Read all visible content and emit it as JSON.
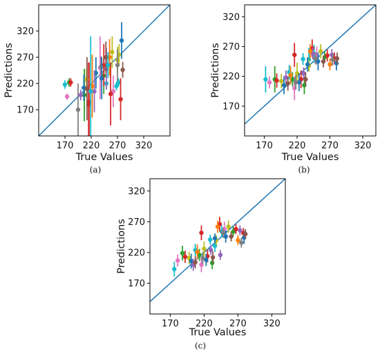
{
  "figure": {
    "captions": [
      "(a)",
      "(b)",
      "(c)"
    ]
  },
  "chart_data": [
    {
      "panel": "(a)",
      "type": "scatter",
      "xlabel": "True Values",
      "ylabel": "Predictions",
      "xlim": [
        120,
        370
      ],
      "ylim": [
        120,
        370
      ],
      "xticks": [
        170,
        220,
        270,
        320
      ],
      "yticks": [
        170,
        220,
        270,
        320
      ],
      "diagonal": "y = x",
      "grid": false,
      "series": [
        {
          "color": "#17becf",
          "values": [
            [
              170,
              218,
              8,
              8
            ],
            [
              249,
              220,
              6,
              6
            ],
            [
              268,
              215,
              8,
              8
            ],
            [
              272,
              222,
              8,
              8
            ]
          ]
        },
        {
          "color": "#e377c2",
          "values": [
            [
              174,
              195,
              6,
              6
            ],
            [
              237,
              250,
              60,
              60
            ],
            [
              262,
              205,
              30,
              30
            ]
          ]
        },
        {
          "color": "#2ca02c",
          "values": [
            [
              178,
              222,
              8,
              8
            ],
            [
              244,
              235,
              35,
              35
            ],
            [
              207,
              198,
              50,
              50
            ]
          ]
        },
        {
          "color": "#d62728",
          "values": [
            [
              181,
              222,
              8,
              8
            ],
            [
              215,
              180,
              80,
              80
            ],
            [
              216,
              185,
              75,
              75
            ],
            [
              244,
              255,
              40,
              40
            ],
            [
              257,
              200,
              60,
              60
            ],
            [
              276,
              190,
              40,
              40
            ]
          ]
        },
        {
          "color": "#bcbd22",
          "values": [
            [
              211,
              228,
              20,
              20
            ],
            [
              260,
              280,
              30,
              30
            ],
            [
              270,
              265,
              25,
              25
            ],
            [
              273,
              275,
              20,
              20
            ]
          ]
        },
        {
          "color": "#7f7f7f",
          "values": [
            [
              195,
              170,
              50,
              50
            ],
            [
              239,
              252,
              20,
              20
            ],
            [
              270,
              255,
              30,
              30
            ]
          ]
        },
        {
          "color": "#1f77b4",
          "values": [
            [
              206,
              212,
              25,
              25
            ],
            [
              229,
              240,
              30,
              30
            ],
            [
              240,
              230,
              40,
              40
            ],
            [
              278,
              302,
              35,
              35
            ]
          ]
        },
        {
          "color": "#9467bd",
          "values": [
            [
              200,
              198,
              10,
              10
            ],
            [
              226,
              205,
              40,
              40
            ],
            [
              249,
              248,
              40,
              40
            ]
          ]
        },
        {
          "color": "#8c564b",
          "values": [
            [
              212,
              210,
              60,
              60
            ],
            [
              248,
              270,
              30,
              30
            ],
            [
              280,
              246,
              15,
              15
            ]
          ]
        },
        {
          "color": "#ff7f0e",
          "values": [
            [
              222,
              215,
              60,
              60
            ],
            [
              255,
              270,
              35,
              35
            ]
          ]
        },
        {
          "color": "#17becf",
          "values": [
            [
              219,
              205,
              105,
              105
            ],
            [
              252,
              255,
              25,
              25
            ]
          ]
        }
      ]
    },
    {
      "panel": "(b)",
      "type": "scatter",
      "xlabel": "True Values",
      "ylabel": "Predictions",
      "xlim": [
        140,
        340
      ],
      "ylim": [
        120,
        340
      ],
      "xticks": [
        170,
        220,
        270,
        320
      ],
      "yticks": [
        170,
        220,
        270,
        320
      ],
      "diagonal": "y = x",
      "grid": false,
      "series": [
        {
          "color": "#17becf",
          "values": [
            [
              172,
              215,
              22,
              22
            ],
            [
              208,
              227,
              12,
              12
            ],
            [
              229,
              249,
              10,
              10
            ],
            [
              238,
              248,
              20,
              20
            ],
            [
              246,
              258,
              15,
              15
            ]
          ]
        },
        {
          "color": "#e377c2",
          "values": [
            [
              178,
              210,
              10,
              10
            ],
            [
              216,
              200,
              20,
              20
            ],
            [
              250,
              255,
              15,
              15
            ]
          ]
        },
        {
          "color": "#2ca02c",
          "values": [
            [
              186,
              215,
              22,
              22
            ],
            [
              213,
              215,
              12,
              12
            ],
            [
              231,
              205,
              15,
              15
            ],
            [
              262,
              252,
              10,
              10
            ]
          ]
        },
        {
          "color": "#d62728",
          "values": [
            [
              189,
              213,
              12,
              12
            ],
            [
              216,
              256,
              20,
              20
            ],
            [
              226,
              215,
              15,
              15
            ],
            [
              243,
              267,
              15,
              15
            ],
            [
              266,
              255,
              10,
              10
            ],
            [
              277,
              250,
              10,
              10
            ]
          ]
        },
        {
          "color": "#bcbd22",
          "values": [
            [
              196,
              212,
              12,
              12
            ],
            [
              220,
              225,
              18,
              18
            ],
            [
              238,
              238,
              10,
              10
            ],
            [
              256,
              262,
              12,
              12
            ]
          ]
        },
        {
          "color": "#1f77b4",
          "values": [
            [
              200,
              205,
              15,
              15
            ],
            [
              223,
              210,
              15,
              15
            ],
            [
              236,
              240,
              12,
              12
            ],
            [
              252,
              245,
              15,
              15
            ],
            [
              280,
              242,
              12,
              12
            ]
          ]
        },
        {
          "color": "#9467bd",
          "values": [
            [
              203,
              218,
              12,
              12
            ],
            [
              230,
              225,
              10,
              10
            ],
            [
              244,
              258,
              10,
              10
            ],
            [
              273,
              256,
              10,
              10
            ]
          ]
        },
        {
          "color": "#8c564b",
          "values": [
            [
              206,
              208,
              12,
              12
            ],
            [
              233,
              215,
              12,
              12
            ],
            [
              260,
              245,
              10,
              10
            ],
            [
              281,
              250,
              10,
              10
            ]
          ]
        },
        {
          "color": "#ff7f0e",
          "values": [
            [
              210,
              222,
              15,
              15
            ],
            [
              240,
              262,
              12,
              12
            ],
            [
              270,
              240,
              10,
              10
            ]
          ]
        },
        {
          "color": "#7f7f7f",
          "values": [
            [
              218,
              210,
              12,
              12
            ],
            [
              248,
              250,
              10,
              10
            ],
            [
              274,
              248,
              10,
              10
            ]
          ]
        }
      ]
    },
    {
      "panel": "(c)",
      "type": "scatter",
      "xlabel": "True Values",
      "ylabel": "Predictions",
      "xlim": [
        140,
        340
      ],
      "ylim": [
        120,
        340
      ],
      "xticks": [
        170,
        220,
        270,
        320
      ],
      "yticks": [
        170,
        220,
        270,
        320
      ],
      "diagonal": "y = x",
      "grid": false,
      "series": [
        {
          "color": "#17becf",
          "values": [
            [
              176,
              193,
              12,
              12
            ],
            [
              207,
              224,
              10,
              10
            ],
            [
              229,
              241,
              8,
              8
            ],
            [
              236,
              231,
              10,
              10
            ],
            [
              246,
              254,
              10,
              10
            ]
          ]
        },
        {
          "color": "#e377c2",
          "values": [
            [
              181,
              207,
              10,
              10
            ],
            [
              216,
              200,
              12,
              12
            ],
            [
              250,
              258,
              12,
              12
            ]
          ]
        },
        {
          "color": "#2ca02c",
          "values": [
            [
              188,
              219,
              12,
              12
            ],
            [
              213,
              216,
              10,
              10
            ],
            [
              232,
              203,
              10,
              10
            ],
            [
              263,
              254,
              8,
              8
            ]
          ]
        },
        {
          "color": "#d62728",
          "values": [
            [
              192,
              213,
              10,
              10
            ],
            [
              216,
              252,
              12,
              12
            ],
            [
              225,
              214,
              10,
              10
            ],
            [
              243,
              266,
              12,
              12
            ],
            [
              267,
              258,
              8,
              8
            ],
            [
              278,
              252,
              8,
              8
            ]
          ]
        },
        {
          "color": "#bcbd22",
          "values": [
            [
              198,
              211,
              10,
              10
            ],
            [
              220,
              226,
              12,
              12
            ],
            [
              238,
              240,
              8,
              8
            ],
            [
              256,
              262,
              10,
              10
            ]
          ]
        },
        {
          "color": "#1f77b4",
          "values": [
            [
              201,
              206,
              12,
              12
            ],
            [
              223,
              208,
              10,
              10
            ],
            [
              236,
              243,
              8,
              8
            ],
            [
              252,
              246,
              10,
              10
            ],
            [
              279,
              244,
              10,
              10
            ]
          ]
        },
        {
          "color": "#9467bd",
          "values": [
            [
              204,
              200,
              10,
              10
            ],
            [
              230,
              224,
              8,
              8
            ],
            [
              244,
              216,
              8,
              8
            ],
            [
              273,
              256,
              8,
              8
            ]
          ]
        },
        {
          "color": "#8c564b",
          "values": [
            [
              207,
              204,
              10,
              10
            ],
            [
              233,
              212,
              10,
              10
            ],
            [
              260,
              246,
              8,
              8
            ],
            [
              281,
              250,
              8,
              8
            ]
          ]
        },
        {
          "color": "#ff7f0e",
          "values": [
            [
              210,
              221,
              12,
              12
            ],
            [
              240,
              262,
              10,
              10
            ],
            [
              270,
              240,
              8,
              8
            ]
          ]
        },
        {
          "color": "#7f7f7f",
          "values": [
            [
              218,
              211,
              10,
              10
            ],
            [
              248,
              252,
              8,
              8
            ],
            [
              275,
              236,
              8,
              8
            ]
          ]
        }
      ]
    }
  ]
}
